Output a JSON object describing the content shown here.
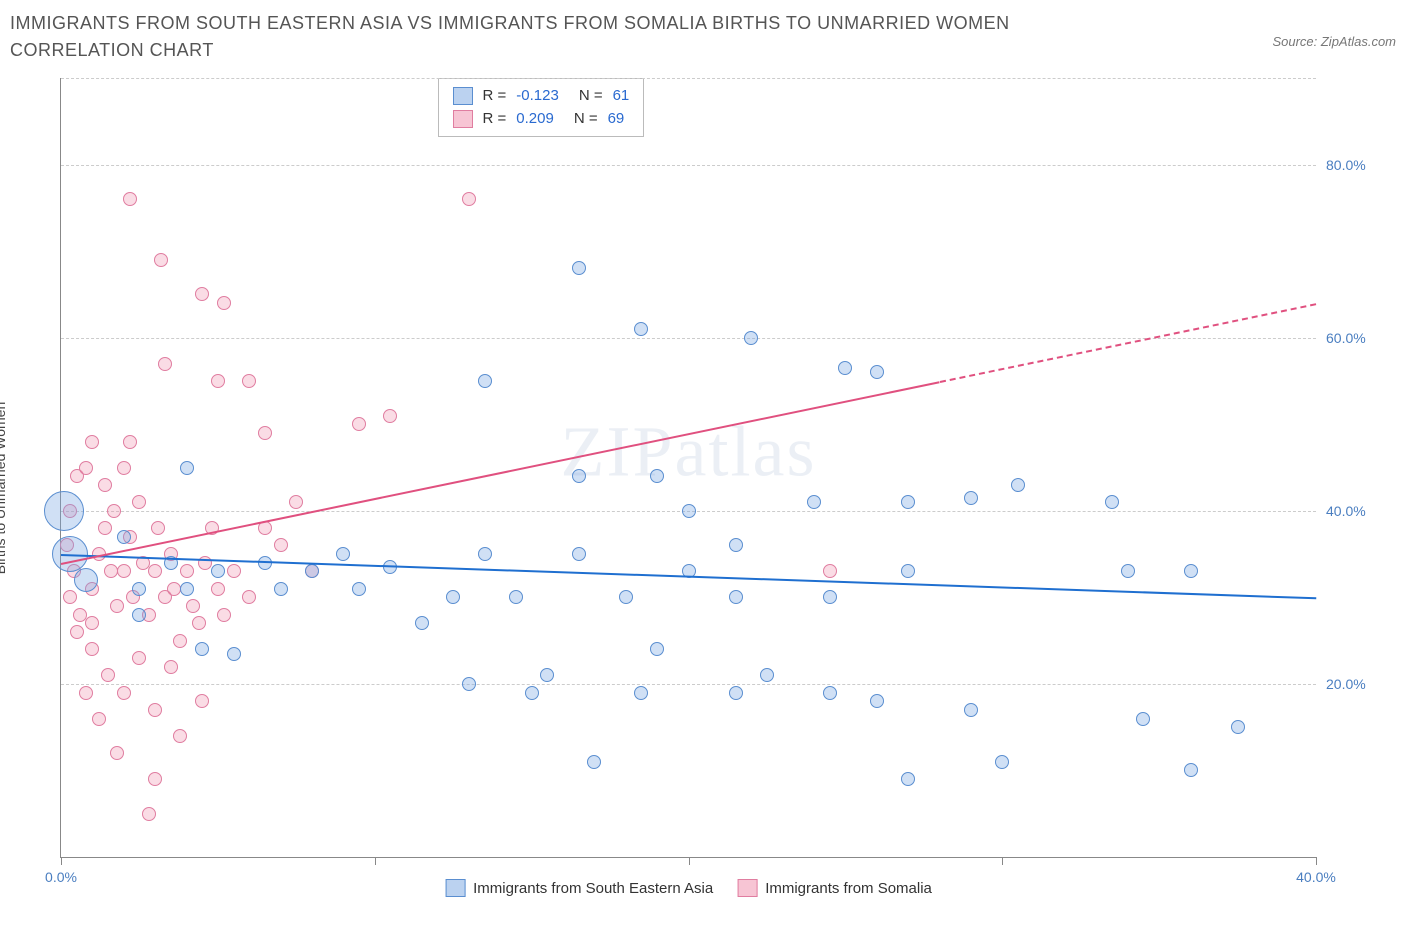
{
  "title": "IMMIGRANTS FROM SOUTH EASTERN ASIA VS IMMIGRANTS FROM SOMALIA BIRTHS TO UNMARRIED WOMEN CORRELATION CHART",
  "source": "Source: ZipAtlas.com",
  "ylabel": "Births to Unmarried Women",
  "watermark_a": "ZIP",
  "watermark_b": "atlas",
  "chart": {
    "type": "scatter",
    "background": "#ffffff",
    "grid_color": "#cccccc",
    "axis_color": "#888888",
    "xlim": [
      0,
      40
    ],
    "ylim": [
      0,
      90
    ],
    "yticks": [
      20,
      40,
      60,
      80
    ],
    "ytick_labels": [
      "20.0%",
      "40.0%",
      "60.0%",
      "80.0%"
    ],
    "xticks": [
      0,
      10,
      20,
      30,
      40
    ],
    "xtick_labels": [
      "0.0%",
      "",
      "",
      "",
      "40.0%"
    ],
    "ytick_label_color": "#4a7ec0",
    "xtick_label_color": "#4a7ec0",
    "series": {
      "sea": {
        "label": "Immigrants from South Eastern Asia",
        "fill": "rgba(120,165,225,0.35)",
        "stroke": "#5a8ed0",
        "R": "-0.123",
        "N": "61",
        "trend": {
          "x1": 0,
          "y1": 35,
          "x2": 40,
          "y2": 30,
          "color": "#1f6fd0",
          "width": 2
        },
        "points": [
          {
            "x": 0.1,
            "y": 40,
            "r": 20
          },
          {
            "x": 0.3,
            "y": 35,
            "r": 18
          },
          {
            "x": 0.8,
            "y": 32,
            "r": 12
          },
          {
            "x": 16.5,
            "y": 68,
            "r": 7
          },
          {
            "x": 18.5,
            "y": 61,
            "r": 7
          },
          {
            "x": 22,
            "y": 60,
            "r": 7
          },
          {
            "x": 25,
            "y": 56.5,
            "r": 7
          },
          {
            "x": 26,
            "y": 56,
            "r": 7
          },
          {
            "x": 13.5,
            "y": 55,
            "r": 7
          },
          {
            "x": 16.5,
            "y": 44,
            "r": 7
          },
          {
            "x": 20,
            "y": 40,
            "r": 7
          },
          {
            "x": 19,
            "y": 44,
            "r": 7
          },
          {
            "x": 21.5,
            "y": 36,
            "r": 7
          },
          {
            "x": 24,
            "y": 41,
            "r": 7
          },
          {
            "x": 24.5,
            "y": 30,
            "r": 7
          },
          {
            "x": 27,
            "y": 41,
            "r": 7
          },
          {
            "x": 29,
            "y": 41.5,
            "r": 7
          },
          {
            "x": 30.5,
            "y": 43,
            "r": 7
          },
          {
            "x": 33.5,
            "y": 41,
            "r": 7
          },
          {
            "x": 36,
            "y": 33,
            "r": 7
          },
          {
            "x": 34,
            "y": 33,
            "r": 7
          },
          {
            "x": 27,
            "y": 33,
            "r": 7
          },
          {
            "x": 18,
            "y": 30,
            "r": 7
          },
          {
            "x": 21.5,
            "y": 30,
            "r": 7
          },
          {
            "x": 13.5,
            "y": 35,
            "r": 7
          },
          {
            "x": 14.5,
            "y": 30,
            "r": 7
          },
          {
            "x": 12.5,
            "y": 30,
            "r": 7
          },
          {
            "x": 10.5,
            "y": 33.5,
            "r": 7
          },
          {
            "x": 11.5,
            "y": 27,
            "r": 7
          },
          {
            "x": 9,
            "y": 35,
            "r": 7
          },
          {
            "x": 9.5,
            "y": 31,
            "r": 7
          },
          {
            "x": 8,
            "y": 33,
            "r": 7
          },
          {
            "x": 7,
            "y": 31,
            "r": 7
          },
          {
            "x": 6.5,
            "y": 34,
            "r": 7
          },
          {
            "x": 5,
            "y": 33,
            "r": 7
          },
          {
            "x": 4,
            "y": 31,
            "r": 7
          },
          {
            "x": 3.5,
            "y": 34,
            "r": 7
          },
          {
            "x": 2.5,
            "y": 28,
            "r": 7
          },
          {
            "x": 2.5,
            "y": 31,
            "r": 7
          },
          {
            "x": 2,
            "y": 37,
            "r": 7
          },
          {
            "x": 4,
            "y": 45,
            "r": 7
          },
          {
            "x": 4.5,
            "y": 24,
            "r": 7
          },
          {
            "x": 5.5,
            "y": 23.5,
            "r": 7
          },
          {
            "x": 13,
            "y": 20,
            "r": 7
          },
          {
            "x": 15,
            "y": 19,
            "r": 7
          },
          {
            "x": 15.5,
            "y": 21,
            "r": 7
          },
          {
            "x": 17,
            "y": 11,
            "r": 7
          },
          {
            "x": 18.5,
            "y": 19,
            "r": 7
          },
          {
            "x": 19,
            "y": 24,
            "r": 7
          },
          {
            "x": 21.5,
            "y": 19,
            "r": 7
          },
          {
            "x": 22.5,
            "y": 21,
            "r": 7
          },
          {
            "x": 24.5,
            "y": 19,
            "r": 7
          },
          {
            "x": 26,
            "y": 18,
            "r": 7
          },
          {
            "x": 27,
            "y": 9,
            "r": 7
          },
          {
            "x": 29,
            "y": 17,
            "r": 7
          },
          {
            "x": 30,
            "y": 11,
            "r": 7
          },
          {
            "x": 34.5,
            "y": 16,
            "r": 7
          },
          {
            "x": 37.5,
            "y": 15,
            "r": 7
          },
          {
            "x": 36,
            "y": 10,
            "r": 7
          },
          {
            "x": 16.5,
            "y": 35,
            "r": 7
          },
          {
            "x": 20,
            "y": 33,
            "r": 7
          }
        ]
      },
      "som": {
        "label": "Immigrants from Somalia",
        "fill": "rgba(240,140,170,0.30)",
        "stroke": "#e07da0",
        "R": "0.209",
        "N": "69",
        "trend": {
          "x1": 0,
          "y1": 34,
          "x2": 28,
          "y2": 55,
          "color": "#e0507f",
          "width": 2,
          "dash_to_x": 40,
          "dash_to_y": 64
        },
        "points": [
          {
            "x": 2.2,
            "y": 76,
            "r": 7
          },
          {
            "x": 3.2,
            "y": 69,
            "r": 7
          },
          {
            "x": 3.3,
            "y": 57,
            "r": 7
          },
          {
            "x": 4.5,
            "y": 65,
            "r": 7
          },
          {
            "x": 5.2,
            "y": 64,
            "r": 7
          },
          {
            "x": 5.0,
            "y": 55,
            "r": 7
          },
          {
            "x": 6.0,
            "y": 55,
            "r": 7
          },
          {
            "x": 13.0,
            "y": 76,
            "r": 7
          },
          {
            "x": 10.5,
            "y": 51,
            "r": 7
          },
          {
            "x": 9.5,
            "y": 50,
            "r": 7
          },
          {
            "x": 6.5,
            "y": 49,
            "r": 7
          },
          {
            "x": 2.2,
            "y": 48,
            "r": 7
          },
          {
            "x": 1.0,
            "y": 48,
            "r": 7
          },
          {
            "x": 0.5,
            "y": 44,
            "r": 7
          },
          {
            "x": 0.3,
            "y": 40,
            "r": 7
          },
          {
            "x": 0.2,
            "y": 36,
            "r": 7
          },
          {
            "x": 0.4,
            "y": 33,
            "r": 7
          },
          {
            "x": 0.3,
            "y": 30,
            "r": 7
          },
          {
            "x": 0.6,
            "y": 28,
            "r": 7
          },
          {
            "x": 1.0,
            "y": 31,
            "r": 7
          },
          {
            "x": 1.2,
            "y": 35,
            "r": 7
          },
          {
            "x": 1.4,
            "y": 38,
            "r": 7
          },
          {
            "x": 1.6,
            "y": 33,
            "r": 7
          },
          {
            "x": 1.7,
            "y": 40,
            "r": 7
          },
          {
            "x": 1.8,
            "y": 29,
            "r": 7
          },
          {
            "x": 2.0,
            "y": 33,
            "r": 7
          },
          {
            "x": 2.2,
            "y": 37,
            "r": 7
          },
          {
            "x": 2.3,
            "y": 30,
            "r": 7
          },
          {
            "x": 2.5,
            "y": 41,
            "r": 7
          },
          {
            "x": 2.6,
            "y": 34,
            "r": 7
          },
          {
            "x": 2.8,
            "y": 28,
            "r": 7
          },
          {
            "x": 3.0,
            "y": 33,
            "r": 7
          },
          {
            "x": 3.1,
            "y": 38,
            "r": 7
          },
          {
            "x": 3.3,
            "y": 30,
            "r": 7
          },
          {
            "x": 3.5,
            "y": 35,
            "r": 7
          },
          {
            "x": 3.6,
            "y": 31,
            "r": 7
          },
          {
            "x": 3.8,
            "y": 25,
            "r": 7
          },
          {
            "x": 4.0,
            "y": 33,
            "r": 7
          },
          {
            "x": 4.2,
            "y": 29,
            "r": 7
          },
          {
            "x": 4.4,
            "y": 27,
            "r": 7
          },
          {
            "x": 4.6,
            "y": 34,
            "r": 7
          },
          {
            "x": 5.0,
            "y": 31,
            "r": 7
          },
          {
            "x": 5.2,
            "y": 28,
            "r": 7
          },
          {
            "x": 5.5,
            "y": 33,
            "r": 7
          },
          {
            "x": 6.0,
            "y": 30,
            "r": 7
          },
          {
            "x": 6.5,
            "y": 38,
            "r": 7
          },
          {
            "x": 7.0,
            "y": 36,
            "r": 7
          },
          {
            "x": 7.5,
            "y": 41,
            "r": 7
          },
          {
            "x": 1.0,
            "y": 24,
            "r": 7
          },
          {
            "x": 1.5,
            "y": 21,
            "r": 7
          },
          {
            "x": 2.0,
            "y": 19,
            "r": 7
          },
          {
            "x": 2.5,
            "y": 23,
            "r": 7
          },
          {
            "x": 3.0,
            "y": 17,
            "r": 7
          },
          {
            "x": 3.5,
            "y": 22,
            "r": 7
          },
          {
            "x": 0.8,
            "y": 19,
            "r": 7
          },
          {
            "x": 1.2,
            "y": 16,
            "r": 7
          },
          {
            "x": 3.8,
            "y": 14,
            "r": 7
          },
          {
            "x": 3.0,
            "y": 9,
            "r": 7
          },
          {
            "x": 4.5,
            "y": 18,
            "r": 7
          },
          {
            "x": 2.8,
            "y": 5,
            "r": 7
          },
          {
            "x": 1.8,
            "y": 12,
            "r": 7
          },
          {
            "x": 24.5,
            "y": 33,
            "r": 7
          },
          {
            "x": 8.0,
            "y": 33,
            "r": 7
          },
          {
            "x": 0.8,
            "y": 45,
            "r": 7
          },
          {
            "x": 2.0,
            "y": 45,
            "r": 7
          },
          {
            "x": 1.4,
            "y": 43,
            "r": 7
          },
          {
            "x": 0.5,
            "y": 26,
            "r": 7
          },
          {
            "x": 1.0,
            "y": 27,
            "r": 7
          },
          {
            "x": 4.8,
            "y": 38,
            "r": 7
          }
        ]
      }
    }
  },
  "legend_top": [
    {
      "swatch_fill": "rgba(120,165,225,0.5)",
      "swatch_stroke": "#5a8ed0",
      "r_label": "R =",
      "r_val": "-0.123",
      "n_label": "N =",
      "n_val": "61"
    },
    {
      "swatch_fill": "rgba(240,140,170,0.5)",
      "swatch_stroke": "#e07da0",
      "r_label": "R =",
      "r_val": "0.209",
      "n_label": "N =",
      "n_val": "69"
    }
  ],
  "legend_bottom": [
    {
      "swatch_fill": "rgba(120,165,225,0.5)",
      "swatch_stroke": "#5a8ed0",
      "label": "Immigrants from South Eastern Asia"
    },
    {
      "swatch_fill": "rgba(240,140,170,0.5)",
      "swatch_stroke": "#e07da0",
      "label": "Immigrants from Somalia"
    }
  ]
}
